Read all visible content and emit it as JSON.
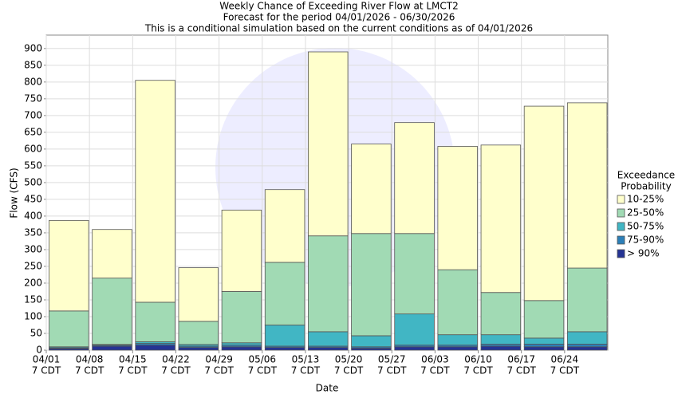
{
  "chart_data": {
    "type": "stacked_bar",
    "title": [
      "Weekly Chance of Exceeding River Flow at LMCT2",
      "Forecast for the period 04/01/2026 - 06/30/2026",
      "This is a conditional simulation based on the current conditions as of 04/01/2026"
    ],
    "x_label": "Date",
    "y_label": "Flow (CFS)",
    "categories": [
      [
        "04/01",
        "7 CDT"
      ],
      [
        "04/08",
        "7 CDT"
      ],
      [
        "04/15",
        "7 CDT"
      ],
      [
        "04/22",
        "7 CDT"
      ],
      [
        "04/29",
        "7 CDT"
      ],
      [
        "05/06",
        "7 CDT"
      ],
      [
        "05/13",
        "7 CDT"
      ],
      [
        "05/20",
        "7 CDT"
      ],
      [
        "05/27",
        "7 CDT"
      ],
      [
        "06/03",
        "7 CDT"
      ],
      [
        "06/10",
        "7 CDT"
      ],
      [
        "06/17",
        "7 CDT"
      ],
      [
        "06/24",
        "7 CDT"
      ]
    ],
    "series": [
      {
        "name": "> 90%",
        "color": "#253494",
        "values": [
          5,
          12,
          15,
          8,
          10,
          8,
          8,
          6,
          10,
          10,
          12,
          10,
          10
        ]
      },
      {
        "name": "75-90%",
        "color": "#2c7fb8",
        "values": [
          2,
          3,
          5,
          4,
          5,
          4,
          4,
          4,
          5,
          5,
          6,
          8,
          8
        ]
      },
      {
        "name": "50-75%",
        "color": "#41b6c4",
        "values": [
          3,
          2,
          5,
          5,
          7,
          63,
          43,
          33,
          93,
          31,
          28,
          18,
          37
        ]
      },
      {
        "name": "25-50%",
        "color": "#a1dab4",
        "values": [
          107,
          198,
          118,
          69,
          153,
          187,
          286,
          305,
          240,
          194,
          126,
          112,
          190
        ]
      },
      {
        "name": "10-25%",
        "color": "#ffffcc",
        "values": [
          270,
          145,
          662,
          160,
          243,
          217,
          549,
          267,
          331,
          368,
          440,
          580,
          493
        ]
      }
    ],
    "legend_title": [
      "Exceedance",
      "Probability"
    ],
    "ylim": [
      0,
      940
    ],
    "yticks": [
      0,
      50,
      100,
      150,
      200,
      250,
      300,
      350,
      400,
      450,
      500,
      550,
      600,
      650,
      700,
      750,
      800,
      850,
      900
    ],
    "grid": true
  }
}
